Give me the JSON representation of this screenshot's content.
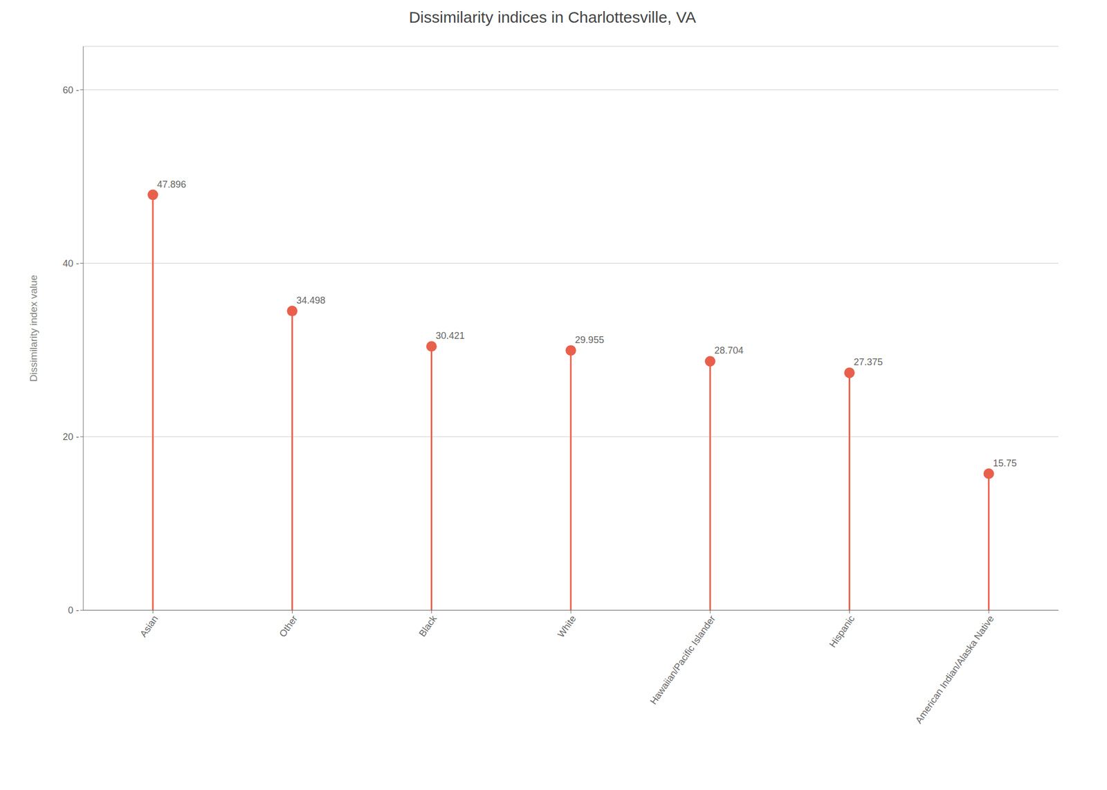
{
  "chart_data": {
    "type": "lollipop",
    "title": "Dissimilarity indices in Charlottesville, VA",
    "ylabel": "Dissimilarity index value",
    "categories": [
      "Asian",
      "Other",
      "Black",
      "White",
      "Hawaiian/Pacific Islander",
      "Hispanic",
      "American Indian/Alaska Native"
    ],
    "values": [
      47.896,
      34.498,
      30.421,
      29.955,
      28.704,
      27.375,
      15.75
    ],
    "color": "#E8604C",
    "ylim": [
      0,
      65
    ],
    "yticks": [
      {
        "value": 0,
        "label": "0 -"
      },
      {
        "value": 20,
        "label": "20 -"
      },
      {
        "value": 40,
        "label": "40 -"
      },
      {
        "value": 60,
        "label": "60 -"
      }
    ],
    "grid": true,
    "data_labels": true
  }
}
